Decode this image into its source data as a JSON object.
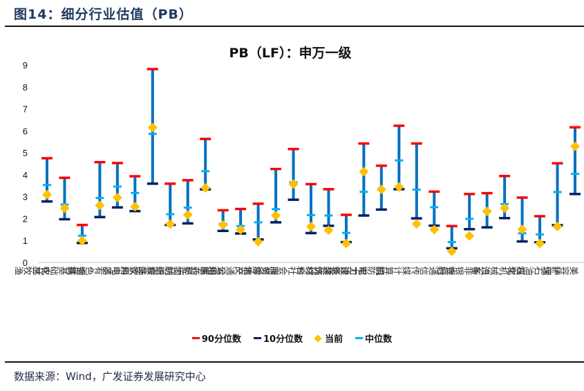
{
  "figure": {
    "title": "图14：细分行业估值（PB）",
    "source": "数据来源：Wind，广发证券发展研究中心"
  },
  "legend": {
    "p90": "90分位数",
    "p10": "10分位数",
    "current": "当前",
    "median": "中位数"
  },
  "colors": {
    "p90": "#ff0000",
    "p10": "#002060",
    "current": "#ffc000",
    "median": "#00b0f0",
    "range": "#0070c0"
  },
  "chart_data": {
    "type": "scatter",
    "title": "PB（LF）：申万一级",
    "xlabel": "",
    "ylabel": "",
    "ylim": [
      0,
      9
    ],
    "yticks": [
      0,
      1,
      2,
      3,
      4,
      5,
      6,
      7,
      8,
      9
    ],
    "grid": false,
    "legend_position": "bottom",
    "categories": [
      "农林牧渔",
      "基础化工",
      "钢铁",
      "有色金属",
      "电子",
      "家用电器",
      "食品饮料",
      "纺织服饰",
      "轻工制造",
      "医药生物",
      "公用事业",
      "交通运输",
      "房地产",
      "商贸零售",
      "社会服务",
      "综合",
      "建筑材料",
      "建筑装饰",
      "电力设备",
      "国防军工",
      "计算机",
      "传媒",
      "通信",
      "银行",
      "非银金融",
      "汽车",
      "机械设备",
      "煤炭",
      "石油石化",
      "环保",
      "美容护理"
    ],
    "series": [
      {
        "name": "90分位数",
        "values": [
          4.75,
          3.86,
          1.71,
          4.57,
          4.53,
          3.93,
          8.81,
          3.59,
          3.75,
          5.63,
          2.38,
          2.44,
          2.68,
          4.26,
          5.17,
          3.57,
          3.34,
          2.17,
          5.42,
          4.41,
          6.23,
          5.42,
          3.23,
          1.66,
          3.12,
          3.16,
          3.94,
          2.96,
          2.11,
          4.52,
          6.16
        ]
      },
      {
        "name": "10分位数",
        "values": [
          2.78,
          1.97,
          0.89,
          2.07,
          2.51,
          2.34,
          3.59,
          1.71,
          1.78,
          3.33,
          1.44,
          1.32,
          1.05,
          1.83,
          2.86,
          1.34,
          1.67,
          0.93,
          2.14,
          2.41,
          3.34,
          2.01,
          1.68,
          0.65,
          1.52,
          1.6,
          2.02,
          0.96,
          0.92,
          1.7,
          3.12
        ]
      },
      {
        "name": "当前",
        "values": [
          3.09,
          2.48,
          1.0,
          2.6,
          2.96,
          2.54,
          6.15,
          1.75,
          2.17,
          3.4,
          1.71,
          1.49,
          0.95,
          2.14,
          3.57,
          1.64,
          1.47,
          0.87,
          4.14,
          3.33,
          3.44,
          1.76,
          1.5,
          0.51,
          1.21,
          2.33,
          2.48,
          1.51,
          0.87,
          1.64,
          5.29
        ]
      },
      {
        "name": "中位数",
        "values": [
          3.53,
          2.64,
          1.22,
          2.94,
          3.46,
          3.17,
          5.86,
          2.2,
          2.5,
          4.16,
          1.76,
          1.66,
          1.83,
          2.43,
          3.65,
          2.16,
          2.14,
          1.35,
          3.22,
          3.33,
          4.65,
          3.32,
          2.52,
          0.93,
          1.99,
          2.33,
          2.66,
          1.33,
          1.28,
          3.21,
          4.04
        ]
      }
    ]
  }
}
